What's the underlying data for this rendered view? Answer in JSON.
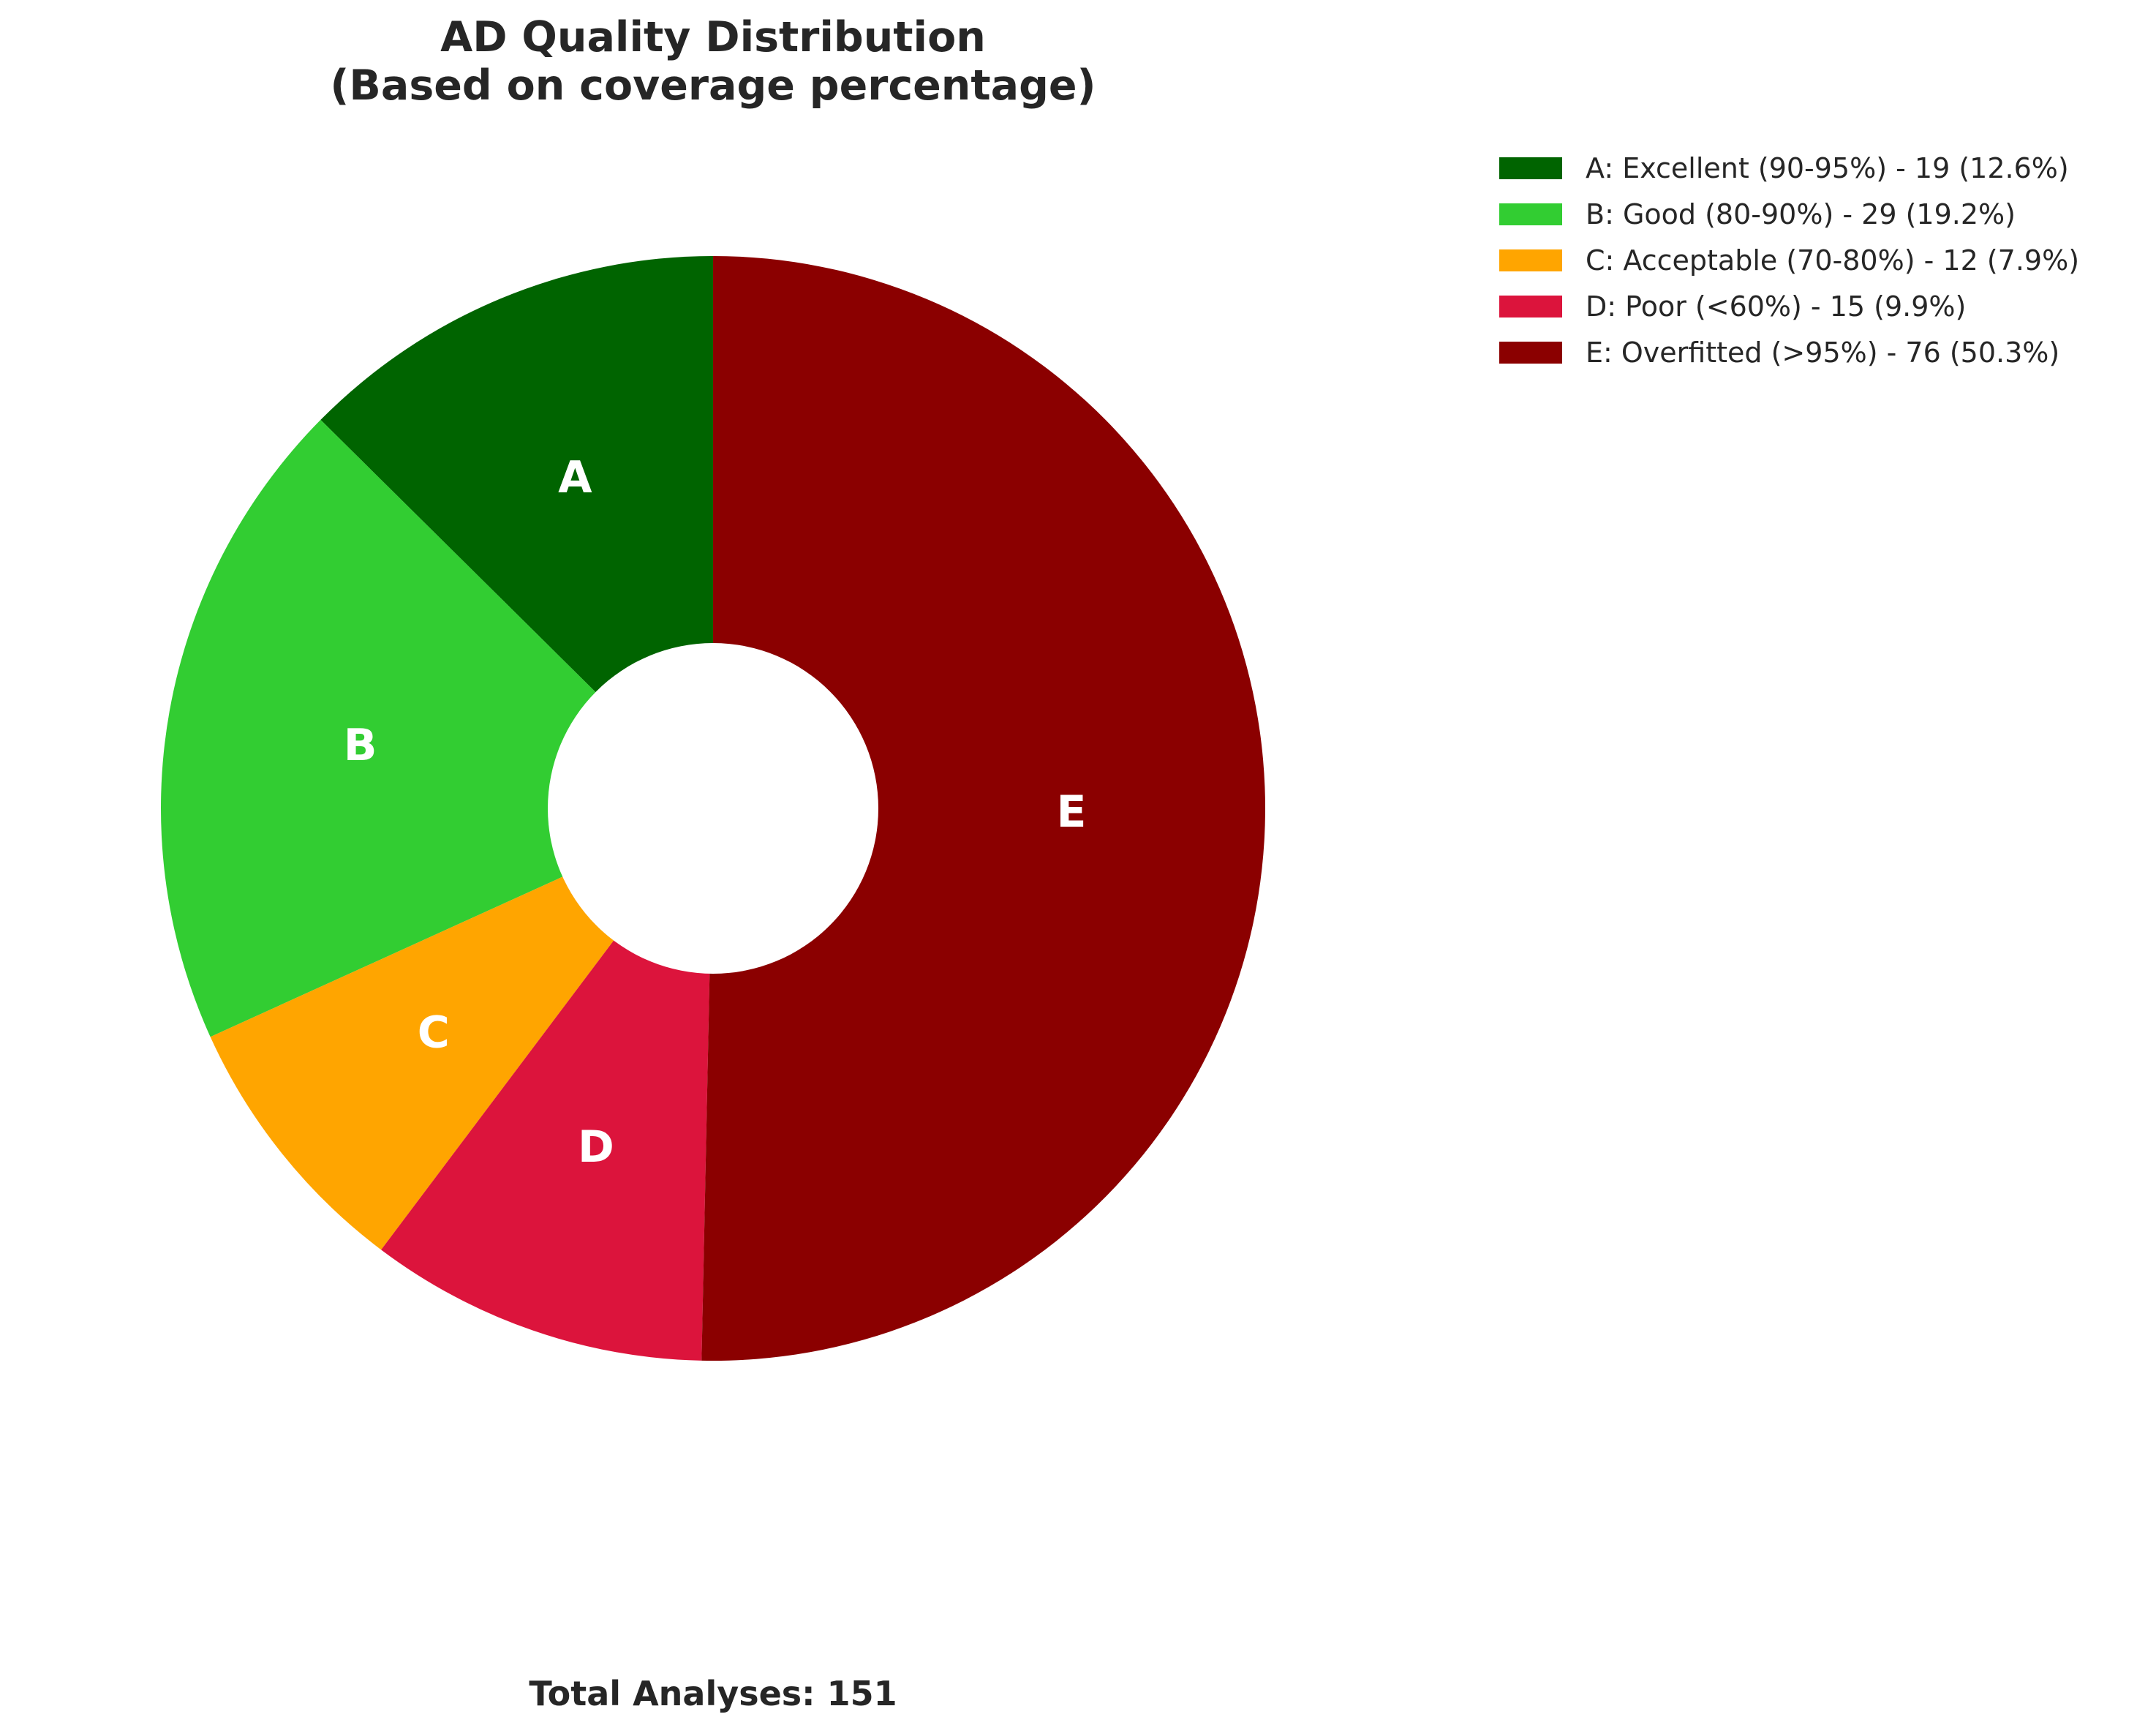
{
  "chart_data": {
    "type": "pie",
    "style": "donut",
    "title_lines": [
      "AD Quality Distribution",
      "(Based on coverage percentage)"
    ],
    "slices": [
      {
        "label": "A",
        "legend": "A: Excellent (90-95%) - 19 (12.6%)",
        "value": 19,
        "percent": 12.6,
        "color": "#006400"
      },
      {
        "label": "B",
        "legend": "B: Good (80-90%) - 29 (19.2%)",
        "value": 29,
        "percent": 19.2,
        "color": "#32CD32"
      },
      {
        "label": "C",
        "legend": "C: Acceptable (70-80%) - 12 (7.9%)",
        "value": 12,
        "percent": 7.9,
        "color": "#FFA500"
      },
      {
        "label": "D",
        "legend": "D: Poor (<60%) - 15 (9.9%)",
        "value": 15,
        "percent": 9.9,
        "color": "#DC143C"
      },
      {
        "label": "E",
        "legend": "E: Overfitted (>95%) - 76 (50.3%)",
        "value": 76,
        "percent": 50.3,
        "color": "#8B0000"
      }
    ],
    "start": "top",
    "direction": "counterclockwise",
    "legend_position": "top-right",
    "footer": "Total Analyses: 151"
  }
}
